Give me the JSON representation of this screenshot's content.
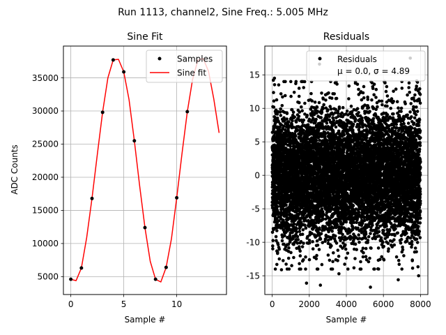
{
  "suptitle": "Run 1113, channel2, Sine Freq.: 5.005 MHz",
  "chart_data": [
    {
      "type": "line",
      "title": "Sine Fit",
      "xlabel": "Sample #",
      "ylabel": "ADC Counts",
      "xlim": [
        -0.7,
        14.7
      ],
      "ylim": [
        2300,
        39800
      ],
      "xticks": [
        0,
        5,
        10
      ],
      "yticks": [
        5000,
        10000,
        15000,
        20000,
        25000,
        30000,
        35000
      ],
      "grid": true,
      "legend_position": "top-right",
      "series": [
        {
          "name": "Samples",
          "kind": "scatter",
          "color": "#000000",
          "x": [
            0,
            1,
            2,
            3,
            4,
            5,
            6,
            7,
            8,
            9,
            10,
            11
          ],
          "y": [
            4600,
            6300,
            16800,
            29800,
            37700,
            35900,
            25500,
            12400,
            4600,
            6400,
            16900,
            29900
          ]
        },
        {
          "name": "Sine fit",
          "kind": "line",
          "color": "#ff0000",
          "x": [
            0.0,
            0.5,
            1.0,
            1.5,
            2.0,
            2.5,
            3.0,
            3.5,
            4.0,
            4.5,
            5.0,
            5.5,
            6.0,
            6.5,
            7.0,
            7.5,
            8.0,
            8.5,
            9.0,
            9.5,
            10.0,
            10.5,
            11.0,
            11.5,
            12.0,
            12.5,
            13.0,
            13.5,
            14.0
          ],
          "y": [
            4600,
            4400,
            6300,
            10900,
            16800,
            23400,
            29800,
            35000,
            37700,
            37800,
            35900,
            31700,
            25500,
            18700,
            12400,
            7300,
            4600,
            4200,
            6400,
            10700,
            16900,
            23600,
            29900,
            34800,
            37700,
            37900,
            36000,
            31800,
            26700
          ]
        }
      ]
    },
    {
      "type": "scatter",
      "title": "Residuals",
      "xlabel": "Sample #",
      "ylabel": "",
      "xlim": [
        -400,
        8400
      ],
      "ylim": [
        -17.8,
        19.3
      ],
      "xticks": [
        0,
        2000,
        4000,
        6000,
        8000
      ],
      "yticks": [
        -15,
        -10,
        -5,
        0,
        5,
        10,
        15
      ],
      "grid": true,
      "legend_position": "top-right",
      "series": [
        {
          "name": "Residuals",
          "legend_stats": "μ = 0.0, σ = 4.89",
          "color": "#000000",
          "num_points": 8000,
          "mean": 0.0,
          "std": 4.89,
          "x": [
            60,
            120,
            350,
            500,
            700,
            1450,
            1850,
            2550,
            2600,
            3400,
            4600,
            5300,
            5600,
            6050,
            6800,
            7450,
            7750,
            7800,
            7900,
            5200,
            2100,
            3600
          ],
          "y": [
            14.2,
            14.5,
            13.5,
            -14.1,
            11.9,
            13.0,
            -16.1,
            16.6,
            -16.4,
            13.8,
            13.6,
            -16.7,
            15.3,
            14.0,
            -15.6,
            17.5,
            12.8,
            14.1,
            -15.0,
            -12.9,
            12.2,
            -14.7
          ]
        }
      ]
    }
  ]
}
